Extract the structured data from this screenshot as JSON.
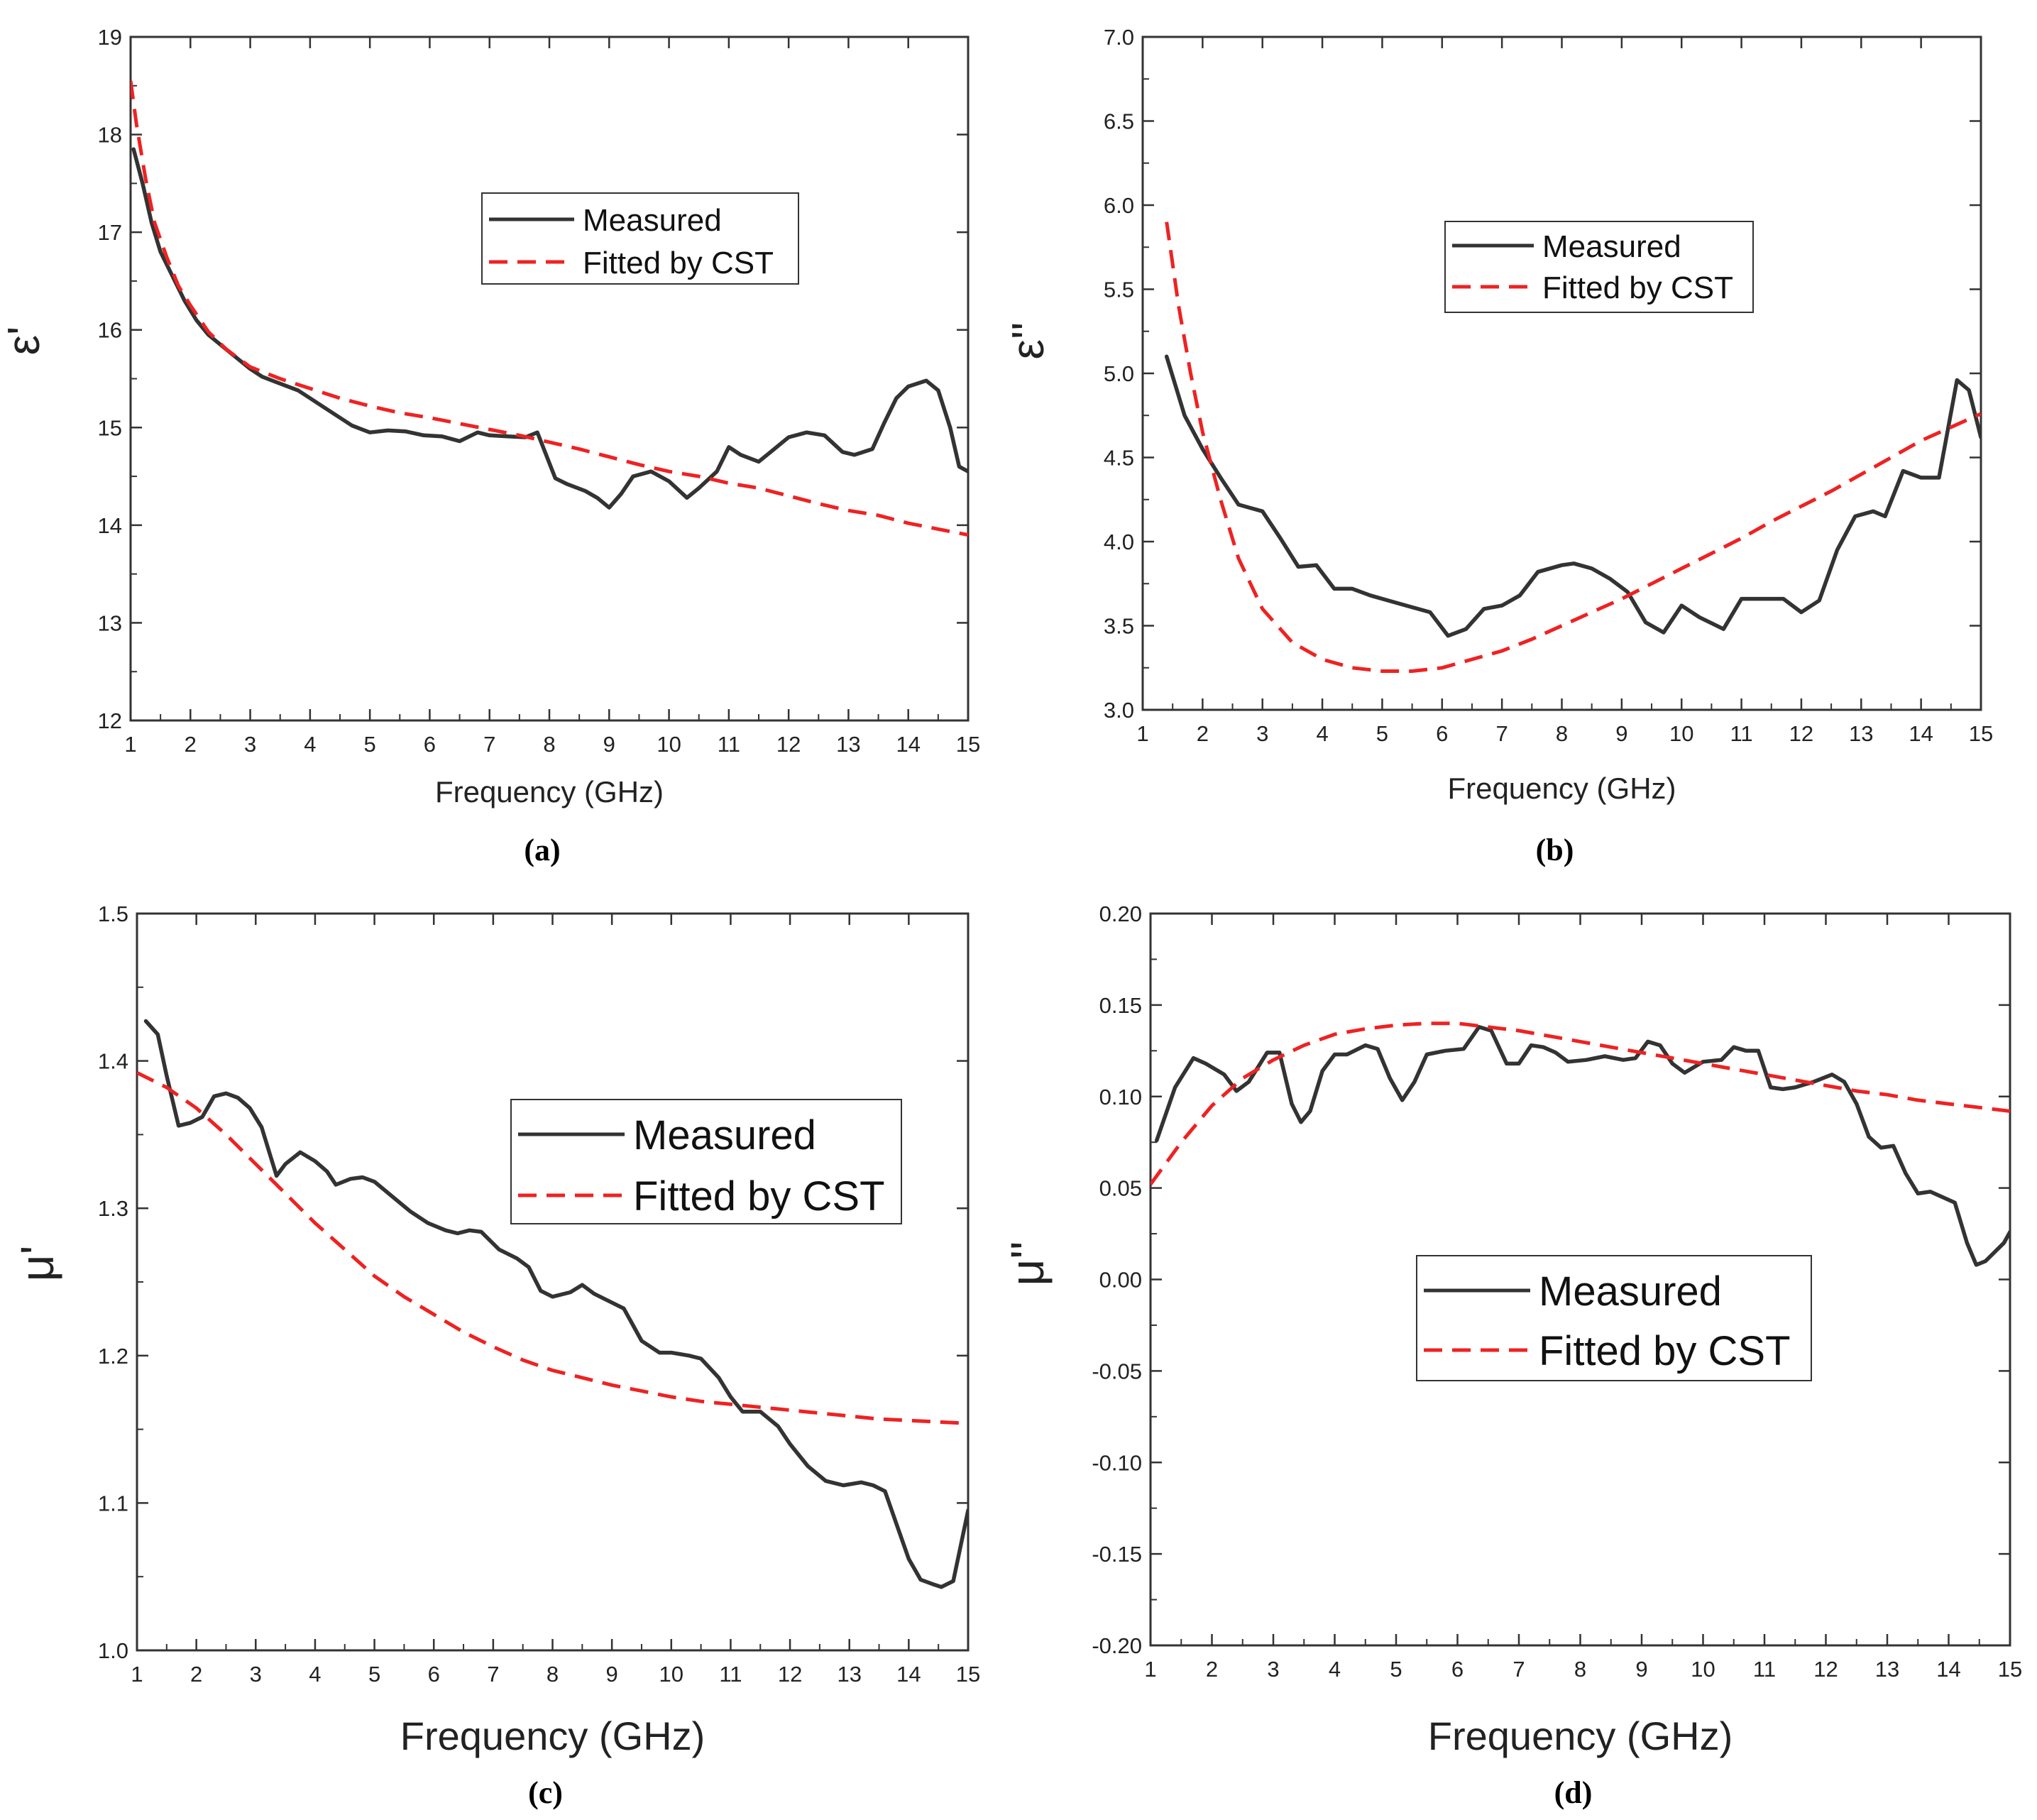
{
  "colors": {
    "measured": "#333333",
    "fitted": "#ee2222",
    "axis": "#333333"
  },
  "chart_data": [
    {
      "type": "line",
      "panel_label": "(a)",
      "xlabel": "Frequency (GHz)",
      "ylabel": "ε'",
      "xlim": [
        1,
        15
      ],
      "ylim": [
        12,
        19
      ],
      "xticks": [
        1,
        2,
        3,
        4,
        5,
        6,
        7,
        8,
        9,
        10,
        11,
        12,
        13,
        14,
        15
      ],
      "yticks": [
        12,
        13,
        14,
        15,
        16,
        17,
        18,
        19
      ],
      "ytick_labels": [
        "12",
        "13",
        "14",
        "15",
        "16",
        "17",
        "18",
        "19"
      ],
      "grid": false,
      "legend": "upper center-right",
      "series": [
        {
          "name": "Measured",
          "style": "solid",
          "x": [
            1.05,
            1.2,
            1.35,
            1.5,
            1.7,
            1.9,
            2.1,
            2.3,
            2.5,
            2.8,
            3.0,
            3.2,
            3.5,
            3.8,
            4.0,
            4.3,
            4.7,
            5.0,
            5.3,
            5.6,
            5.9,
            6.2,
            6.5,
            6.8,
            7.0,
            7.3,
            7.6,
            7.8,
            8.1,
            8.3,
            8.6,
            8.8,
            9.0,
            9.2,
            9.4,
            9.7,
            10.0,
            10.3,
            10.5,
            10.8,
            11.0,
            11.2,
            11.5,
            11.8,
            12.0,
            12.3,
            12.6,
            12.9,
            13.1,
            13.4,
            13.6,
            13.8,
            14.0,
            14.3,
            14.5,
            14.7,
            14.85,
            15.0
          ],
          "y": [
            17.85,
            17.5,
            17.1,
            16.8,
            16.55,
            16.3,
            16.1,
            15.95,
            15.85,
            15.7,
            15.6,
            15.52,
            15.45,
            15.38,
            15.3,
            15.18,
            15.02,
            14.95,
            14.97,
            14.96,
            14.92,
            14.91,
            14.86,
            14.95,
            14.92,
            14.91,
            14.9,
            14.95,
            14.48,
            14.42,
            14.35,
            14.28,
            14.18,
            14.32,
            14.5,
            14.55,
            14.45,
            14.28,
            14.38,
            14.55,
            14.8,
            14.72,
            14.65,
            14.8,
            14.9,
            14.95,
            14.92,
            14.75,
            14.72,
            14.78,
            15.05,
            15.3,
            15.42,
            15.48,
            15.38,
            15.0,
            14.6,
            14.55
          ]
        },
        {
          "name": "Fitted by CST",
          "style": "dashed",
          "x": [
            1.0,
            1.1,
            1.25,
            1.4,
            1.6,
            1.8,
            2.0,
            2.3,
            2.6,
            3.0,
            3.5,
            4.0,
            4.5,
            5.0,
            5.5,
            6.0,
            6.5,
            7.0,
            7.5,
            8.0,
            8.5,
            9.0,
            9.5,
            10.0,
            10.5,
            11.0,
            11.5,
            12.0,
            12.5,
            13.0,
            13.5,
            14.0,
            14.5,
            15.0
          ],
          "y": [
            18.55,
            18.1,
            17.55,
            17.1,
            16.75,
            16.45,
            16.25,
            15.98,
            15.8,
            15.62,
            15.5,
            15.4,
            15.3,
            15.22,
            15.15,
            15.1,
            15.04,
            14.98,
            14.92,
            14.85,
            14.78,
            14.7,
            14.62,
            14.55,
            14.5,
            14.43,
            14.38,
            14.3,
            14.22,
            14.15,
            14.1,
            14.02,
            13.96,
            13.9
          ]
        }
      ]
    },
    {
      "type": "line",
      "panel_label": "(b)",
      "xlabel": "Frequency (GHz)",
      "ylabel": "ε''",
      "xlim": [
        1,
        15
      ],
      "ylim": [
        3.0,
        7.0
      ],
      "xticks": [
        1,
        2,
        3,
        4,
        5,
        6,
        7,
        8,
        9,
        10,
        11,
        12,
        13,
        14,
        15
      ],
      "yticks": [
        3.0,
        3.5,
        4.0,
        4.5,
        5.0,
        5.5,
        6.0,
        6.5,
        7.0
      ],
      "ytick_labels": [
        "3.0",
        "3.5",
        "4.0",
        "4.5",
        "5.0",
        "5.5",
        "6.0",
        "6.5",
        "7.0"
      ],
      "grid": false,
      "legend": "upper center-right",
      "series": [
        {
          "name": "Measured",
          "style": "solid",
          "x": [
            1.4,
            1.7,
            2.0,
            2.3,
            2.6,
            2.8,
            3.0,
            3.3,
            3.6,
            3.9,
            4.2,
            4.5,
            4.8,
            5.1,
            5.4,
            5.8,
            6.1,
            6.4,
            6.7,
            7.0,
            7.3,
            7.6,
            8.0,
            8.2,
            8.5,
            8.8,
            9.1,
            9.4,
            9.7,
            10.0,
            10.3,
            10.7,
            11.0,
            11.3,
            11.7,
            12.0,
            12.3,
            12.6,
            12.9,
            13.2,
            13.4,
            13.7,
            14.0,
            14.3,
            14.6,
            14.8,
            15.0
          ],
          "y": [
            5.1,
            4.75,
            4.55,
            4.38,
            4.22,
            4.2,
            4.18,
            4.02,
            3.85,
            3.86,
            3.72,
            3.72,
            3.68,
            3.65,
            3.62,
            3.58,
            3.44,
            3.48,
            3.6,
            3.62,
            3.68,
            3.82,
            3.86,
            3.87,
            3.84,
            3.78,
            3.7,
            3.52,
            3.46,
            3.62,
            3.55,
            3.48,
            3.66,
            3.66,
            3.66,
            3.58,
            3.65,
            3.95,
            4.15,
            4.18,
            4.15,
            4.42,
            4.38,
            4.38,
            4.96,
            4.9,
            4.62
          ]
        },
        {
          "name": "Fitted by CST",
          "style": "dashed",
          "x": [
            1.4,
            1.6,
            1.8,
            2.0,
            2.3,
            2.6,
            3.0,
            3.5,
            4.0,
            4.5,
            5.0,
            5.5,
            6.0,
            6.5,
            7.0,
            7.5,
            8.0,
            8.5,
            9.0,
            9.5,
            10.0,
            10.5,
            11.0,
            11.5,
            12.0,
            12.5,
            13.0,
            13.5,
            14.0,
            14.5,
            15.0
          ],
          "y": [
            5.9,
            5.4,
            5.0,
            4.65,
            4.25,
            3.9,
            3.6,
            3.4,
            3.3,
            3.25,
            3.23,
            3.23,
            3.25,
            3.3,
            3.35,
            3.42,
            3.5,
            3.58,
            3.66,
            3.75,
            3.84,
            3.93,
            4.02,
            4.12,
            4.21,
            4.3,
            4.4,
            4.5,
            4.6,
            4.68,
            4.76
          ]
        }
      ]
    },
    {
      "type": "line",
      "panel_label": "(c)",
      "xlabel": "Frequency (GHz)",
      "ylabel": "μ'",
      "xlim": [
        1,
        15
      ],
      "ylim": [
        1.0,
        1.5
      ],
      "xticks": [
        1,
        2,
        3,
        4,
        5,
        6,
        7,
        8,
        9,
        10,
        11,
        12,
        13,
        14,
        15
      ],
      "yticks": [
        1.0,
        1.1,
        1.2,
        1.3,
        1.4,
        1.5
      ],
      "ytick_labels": [
        "1.0",
        "1.1",
        "1.2",
        "1.3",
        "1.4",
        "1.5"
      ],
      "grid": false,
      "legend": "center-right",
      "series": [
        {
          "name": "Measured",
          "style": "solid",
          "x": [
            1.15,
            1.35,
            1.5,
            1.7,
            1.9,
            2.1,
            2.3,
            2.5,
            2.7,
            2.9,
            3.1,
            3.35,
            3.5,
            3.75,
            4.0,
            4.2,
            4.35,
            4.6,
            4.8,
            5.0,
            5.3,
            5.6,
            5.9,
            6.2,
            6.4,
            6.6,
            6.8,
            7.1,
            7.4,
            7.6,
            7.8,
            8.0,
            8.3,
            8.5,
            8.7,
            9.0,
            9.2,
            9.5,
            9.8,
            10.0,
            10.3,
            10.5,
            10.8,
            11.0,
            11.2,
            11.5,
            11.8,
            12.0,
            12.3,
            12.6,
            12.9,
            13.2,
            13.4,
            13.6,
            13.8,
            14.0,
            14.2,
            14.4,
            14.55,
            14.75,
            15.0
          ],
          "y": [
            1.427,
            1.418,
            1.39,
            1.356,
            1.358,
            1.362,
            1.376,
            1.378,
            1.375,
            1.368,
            1.355,
            1.322,
            1.33,
            1.338,
            1.332,
            1.325,
            1.316,
            1.32,
            1.321,
            1.318,
            1.308,
            1.298,
            1.29,
            1.285,
            1.283,
            1.285,
            1.284,
            1.272,
            1.266,
            1.26,
            1.244,
            1.24,
            1.243,
            1.248,
            1.242,
            1.236,
            1.232,
            1.21,
            1.202,
            1.202,
            1.2,
            1.198,
            1.185,
            1.172,
            1.162,
            1.162,
            1.152,
            1.14,
            1.125,
            1.115,
            1.112,
            1.114,
            1.112,
            1.108,
            1.085,
            1.062,
            1.048,
            1.045,
            1.043,
            1.047,
            1.095
          ]
        },
        {
          "name": "Fitted by CST",
          "style": "dashed",
          "x": [
            1.0,
            1.5,
            2.0,
            2.5,
            3.0,
            3.5,
            4.0,
            4.5,
            5.0,
            5.5,
            6.0,
            6.5,
            7.0,
            7.5,
            8.0,
            8.5,
            9.0,
            9.5,
            10.0,
            10.5,
            11.0,
            11.5,
            12.0,
            12.5,
            13.0,
            13.5,
            14.0,
            14.5,
            15.0
          ],
          "y": [
            1.392,
            1.382,
            1.368,
            1.35,
            1.33,
            1.31,
            1.29,
            1.272,
            1.254,
            1.24,
            1.228,
            1.216,
            1.206,
            1.197,
            1.19,
            1.185,
            1.18,
            1.176,
            1.172,
            1.169,
            1.167,
            1.165,
            1.163,
            1.161,
            1.159,
            1.157,
            1.156,
            1.155,
            1.154
          ]
        }
      ]
    },
    {
      "type": "line",
      "panel_label": "(d)",
      "xlabel": "Frequency (GHz)",
      "ylabel": "μ''",
      "xlim": [
        1,
        15
      ],
      "ylim": [
        -0.2,
        0.2
      ],
      "xticks": [
        1,
        2,
        3,
        4,
        5,
        6,
        7,
        8,
        9,
        10,
        11,
        12,
        13,
        14,
        15
      ],
      "yticks": [
        -0.2,
        -0.15,
        -0.1,
        -0.05,
        0.0,
        0.05,
        0.1,
        0.15,
        0.2
      ],
      "ytick_labels": [
        "-0.20",
        "-0.15",
        "-0.10",
        "-0.05",
        "0.00",
        "0.05",
        "0.10",
        "0.15",
        "0.20"
      ],
      "grid": false,
      "legend": "center",
      "series": [
        {
          "name": "Measured",
          "style": "solid",
          "x": [
            1.1,
            1.4,
            1.7,
            1.9,
            2.2,
            2.4,
            2.6,
            2.9,
            3.1,
            3.3,
            3.45,
            3.6,
            3.8,
            4.0,
            4.2,
            4.5,
            4.7,
            4.9,
            5.1,
            5.3,
            5.5,
            5.8,
            6.1,
            6.35,
            6.55,
            6.8,
            7.0,
            7.2,
            7.4,
            7.6,
            7.8,
            8.1,
            8.4,
            8.7,
            8.9,
            9.1,
            9.3,
            9.5,
            9.7,
            10.0,
            10.3,
            10.5,
            10.7,
            10.9,
            11.1,
            11.3,
            11.5,
            11.8,
            12.1,
            12.3,
            12.5,
            12.7,
            12.9,
            13.1,
            13.3,
            13.5,
            13.7,
            13.9,
            14.1,
            14.3,
            14.45,
            14.6,
            14.75,
            14.9,
            15.0
          ],
          "y": [
            0.076,
            0.105,
            0.121,
            0.118,
            0.112,
            0.103,
            0.108,
            0.124,
            0.124,
            0.096,
            0.086,
            0.092,
            0.114,
            0.123,
            0.123,
            0.128,
            0.126,
            0.11,
            0.098,
            0.108,
            0.123,
            0.125,
            0.126,
            0.138,
            0.136,
            0.118,
            0.118,
            0.128,
            0.127,
            0.124,
            0.119,
            0.12,
            0.122,
            0.12,
            0.121,
            0.13,
            0.128,
            0.118,
            0.113,
            0.119,
            0.12,
            0.127,
            0.125,
            0.125,
            0.105,
            0.104,
            0.105,
            0.108,
            0.112,
            0.108,
            0.096,
            0.078,
            0.072,
            0.073,
            0.058,
            0.047,
            0.048,
            0.045,
            0.042,
            0.02,
            0.008,
            0.01,
            0.015,
            0.02,
            0.026
          ]
        },
        {
          "name": "Fitted by CST",
          "style": "dashed",
          "x": [
            1.0,
            1.5,
            2.0,
            2.5,
            3.0,
            3.5,
            4.0,
            4.5,
            5.0,
            5.5,
            6.0,
            6.5,
            7.0,
            7.5,
            8.0,
            8.5,
            9.0,
            9.5,
            10.0,
            10.5,
            11.0,
            11.5,
            12.0,
            12.5,
            13.0,
            13.5,
            14.0,
            14.5,
            15.0
          ],
          "y": [
            0.052,
            0.075,
            0.095,
            0.11,
            0.12,
            0.128,
            0.134,
            0.137,
            0.139,
            0.14,
            0.14,
            0.138,
            0.136,
            0.133,
            0.13,
            0.127,
            0.124,
            0.121,
            0.118,
            0.115,
            0.112,
            0.109,
            0.106,
            0.103,
            0.101,
            0.098,
            0.096,
            0.094,
            0.092
          ]
        }
      ]
    }
  ]
}
